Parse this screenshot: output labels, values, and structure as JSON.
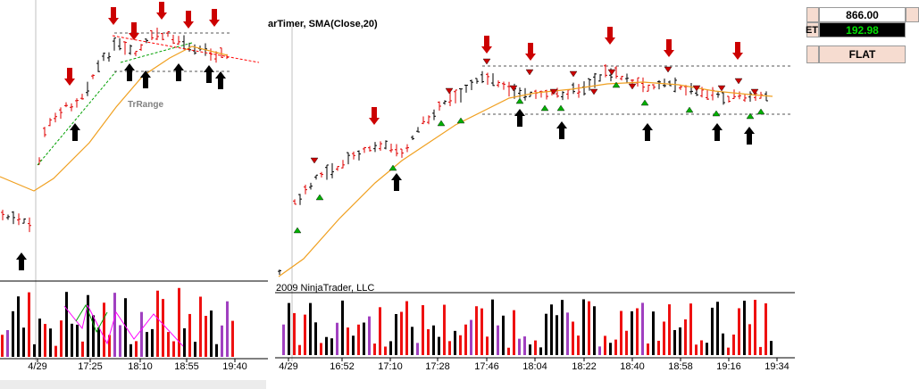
{
  "right_chart": {
    "title": "arTimer, SMA(Close,20)",
    "credit": "2009 NinjaTrader, LLC",
    "x_tick_labels": [
      "4/29",
      "16:52",
      "17:10",
      "17:28",
      "17:46",
      "18:04",
      "18:22",
      "18:40",
      "18:58",
      "19:16",
      "19:34"
    ]
  },
  "left_chart": {
    "indicator_label": "TrRange",
    "x_tick_labels": [
      "4/29",
      "17:25",
      "18:10",
      "18:55",
      "19:40"
    ]
  },
  "position_panel": {
    "price_value": "866.00",
    "pnl_label_fragment": "ET",
    "pnl_value": "192.98",
    "position_status": "FLAT"
  },
  "colors": {
    "up_bar": "#000000",
    "down_bar": "#e00000",
    "sma_line": "#f0a020",
    "sell_marker": "#cc0000",
    "buy_marker": "#00aa00",
    "volume_neutral": "#a040c0",
    "pnl_bg": "#000000",
    "pnl_text": "#00e000",
    "panel_bg": "#f6dcd0"
  }
}
